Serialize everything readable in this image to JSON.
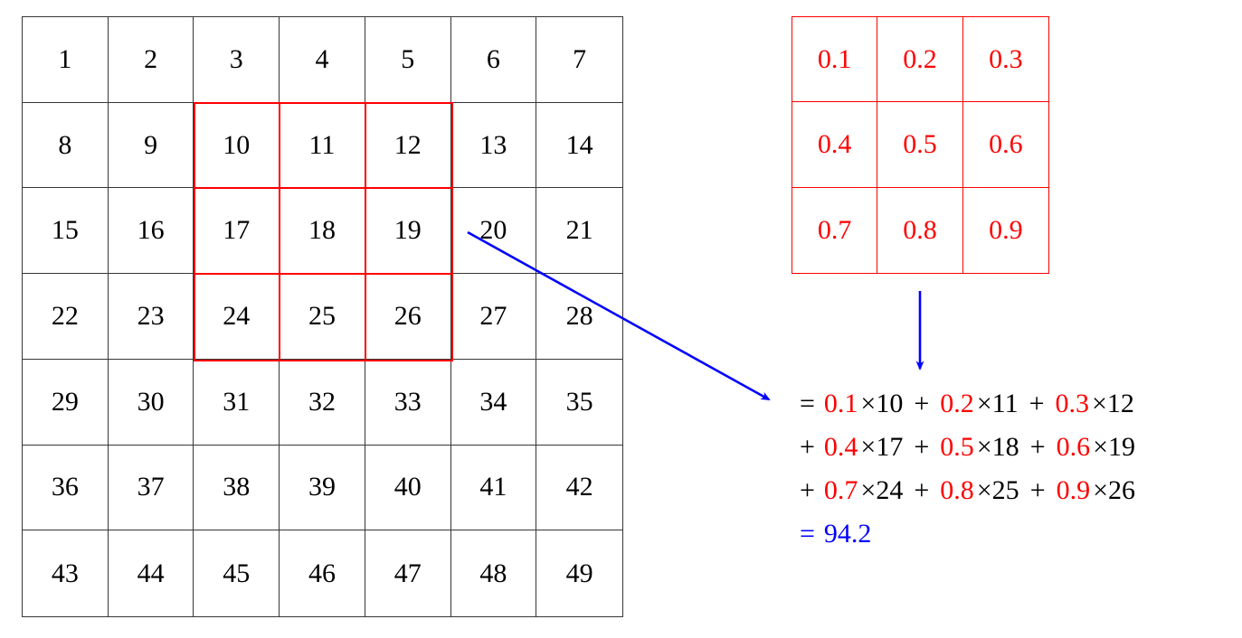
{
  "diagram": {
    "description": "2D convolution example: 3x3 kernel applied to a 7x7 input grid"
  },
  "input_grid": {
    "rows": 7,
    "cols": 7,
    "values": [
      [
        1,
        2,
        3,
        4,
        5,
        6,
        7
      ],
      [
        8,
        9,
        10,
        11,
        12,
        13,
        14
      ],
      [
        15,
        16,
        17,
        18,
        19,
        20,
        21
      ],
      [
        22,
        23,
        24,
        25,
        26,
        27,
        28
      ],
      [
        29,
        30,
        31,
        32,
        33,
        34,
        35
      ],
      [
        36,
        37,
        38,
        39,
        40,
        41,
        42
      ],
      [
        43,
        44,
        45,
        46,
        47,
        48,
        49
      ]
    ],
    "highlight": {
      "row_start": 1,
      "col_start": 2,
      "rows": 3,
      "cols": 3,
      "covered_values": [
        10,
        11,
        12,
        17,
        18,
        19,
        24,
        25,
        26
      ]
    }
  },
  "kernel_grid": {
    "rows": 3,
    "cols": 3,
    "values": [
      [
        "0.1",
        "0.2",
        "0.3"
      ],
      [
        "0.4",
        "0.5",
        "0.6"
      ],
      [
        "0.7",
        "0.8",
        "0.9"
      ]
    ]
  },
  "equation": {
    "multiply_symbol": "×",
    "plus_symbol": "+",
    "lines": [
      {
        "prefix": "=",
        "terms": [
          {
            "coef": "0.1",
            "value": "10"
          },
          {
            "coef": "0.2",
            "value": "11"
          },
          {
            "coef": "0.3",
            "value": "12"
          }
        ]
      },
      {
        "prefix": "+",
        "terms": [
          {
            "coef": "0.4",
            "value": "17"
          },
          {
            "coef": "0.5",
            "value": "18"
          },
          {
            "coef": "0.6",
            "value": "19"
          }
        ]
      },
      {
        "prefix": "+",
        "terms": [
          {
            "coef": "0.7",
            "value": "24"
          },
          {
            "coef": "0.8",
            "value": "25"
          },
          {
            "coef": "0.9",
            "value": "26"
          }
        ]
      }
    ],
    "result": {
      "prefix": "=",
      "value": "94.2"
    }
  },
  "colors": {
    "red": "#fe0000",
    "blue": "#0000fe",
    "grid_line": "#363636",
    "text": "#000000"
  }
}
